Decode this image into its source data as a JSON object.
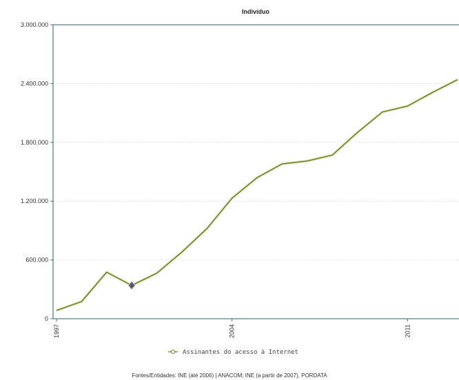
{
  "chart_data": {
    "type": "line",
    "title": "Indivíduo",
    "x": [
      1997,
      1998,
      1999,
      2000,
      2001,
      2002,
      2003,
      2004,
      2005,
      2006,
      2007,
      2008,
      2009,
      2010,
      2011,
      2012,
      2013
    ],
    "x_tick_labels": [
      "1997",
      "2004",
      "2011"
    ],
    "x_tick_values": [
      1997,
      2004,
      2011
    ],
    "y_tick_labels": [
      "3.000.000",
      "2.400.000",
      "1.800.000",
      "1.200.000",
      "600.000",
      "0"
    ],
    "y_tick_values": [
      3000000,
      2400000,
      1800000,
      1200000,
      600000,
      0
    ],
    "ylim": [
      0,
      3000000
    ],
    "xlim": [
      1997,
      2013
    ],
    "grid": true,
    "series": [
      {
        "name": "Assinantes do acesso à Internet",
        "color": "#6b7a1e",
        "values": [
          85000,
          175000,
          475000,
          340000,
          465000,
          680000,
          920000,
          1230000,
          1440000,
          1580000,
          1610000,
          1670000,
          1900000,
          2110000,
          2170000,
          2310000,
          2440000
        ],
        "highlight_index": 3
      }
    ],
    "legend": {
      "position": "bottom"
    },
    "source": "Fontes/Entidades: INE (até 2006) | ANACOM; INE (a partir de 2007), PORDATA"
  }
}
